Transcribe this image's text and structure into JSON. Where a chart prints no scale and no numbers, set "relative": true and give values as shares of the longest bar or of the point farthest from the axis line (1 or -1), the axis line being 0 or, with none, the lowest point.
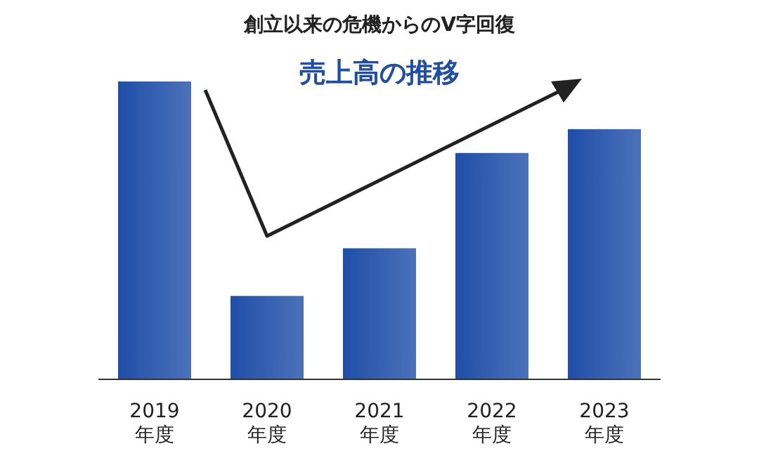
{
  "chart_data": {
    "type": "bar",
    "title": "創立以来の危機からのV字回復",
    "subtitle": "売上高の推移",
    "relative": true,
    "categories": [
      "2019\n年度",
      "2020\n年度",
      "2021\n年度",
      "2022\n年度",
      "2023\n年度"
    ],
    "values": [
      1,
      0.28,
      0.44,
      0.76,
      0.84
    ],
    "color": "#1f4ea8"
  }
}
